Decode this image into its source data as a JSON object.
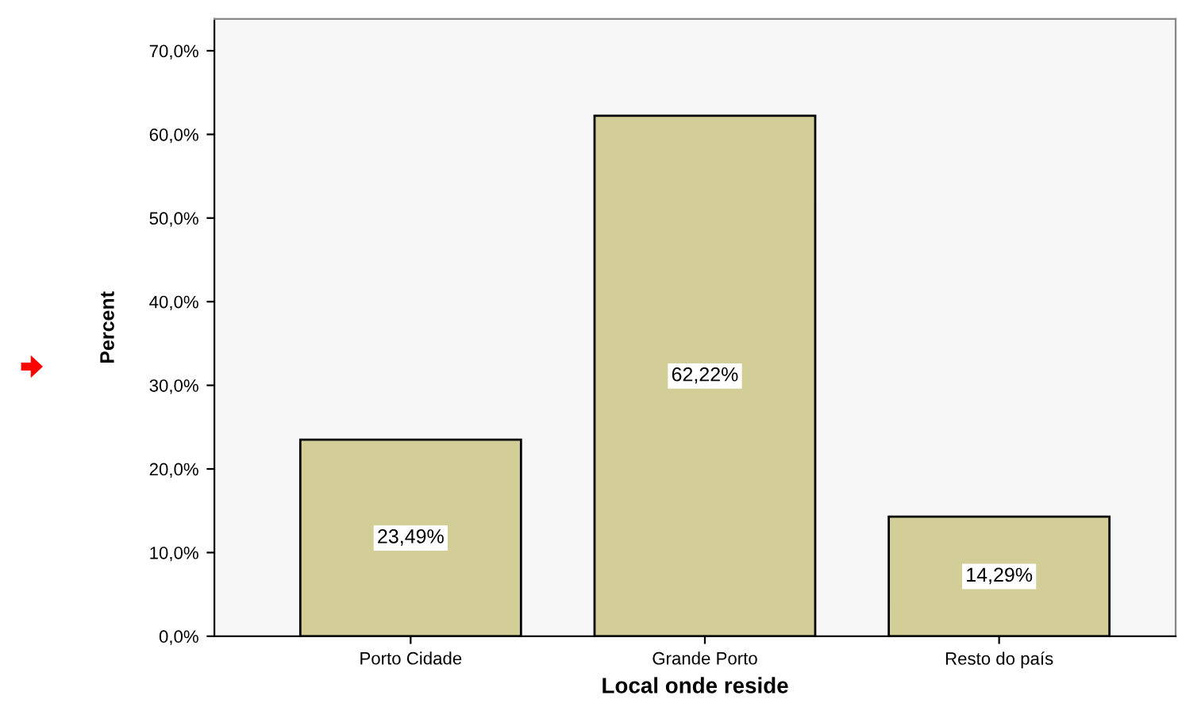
{
  "chart_data": {
    "type": "bar",
    "xlabel": "Local onde reside",
    "ylabel": "Percent",
    "categories": [
      "Porto Cidade",
      "Grande Porto",
      "Resto do país"
    ],
    "values": [
      23.49,
      62.22,
      14.29
    ],
    "value_labels": [
      "23,49%",
      "62,22%",
      "14,29%"
    ],
    "color": "#d3ce97",
    "ylim": [
      0,
      73.8
    ],
    "yticks": [
      {
        "value": 0,
        "label": "0,0%"
      },
      {
        "value": 10,
        "label": "10,0%"
      },
      {
        "value": 20,
        "label": "20,0%"
      },
      {
        "value": 30,
        "label": "30,0%"
      },
      {
        "value": 40,
        "label": "40,0%"
      },
      {
        "value": 50,
        "label": "50,0%"
      },
      {
        "value": 60,
        "label": "60,0%"
      },
      {
        "value": 70,
        "label": "70,0%"
      }
    ],
    "grid": false,
    "legend": false
  }
}
